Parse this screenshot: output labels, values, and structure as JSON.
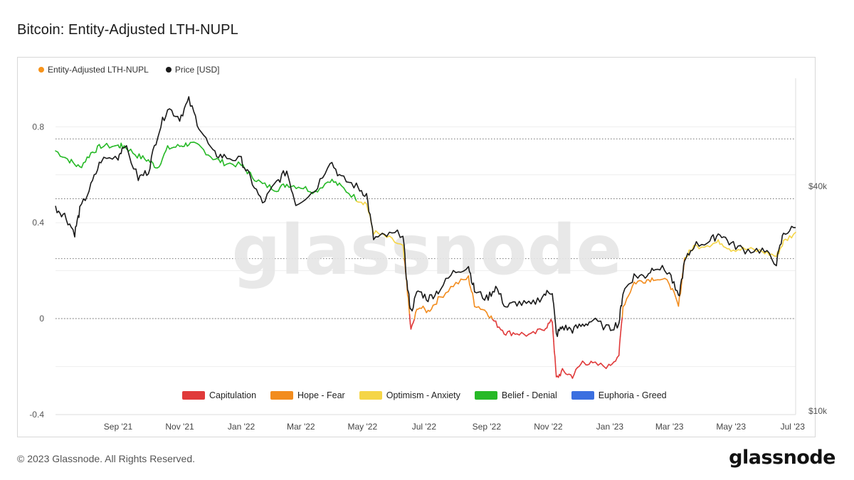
{
  "title": "Bitcoin: Entity-Adjusted LTH-NUPL",
  "footer": {
    "copyright": "© 2023 Glassnode. All Rights Reserved.",
    "logo": "glassnode"
  },
  "watermark": "glassnode",
  "chart_data": {
    "type": "line",
    "title": "Bitcoin: Entity-Adjusted LTH-NUPL",
    "legend_placement": "top-left",
    "grid": true,
    "series": [
      {
        "name": "Entity-Adjusted LTH-NUPL",
        "color": "#f7931a",
        "axis": "left"
      },
      {
        "name": "Price [USD]",
        "color": "#1a1a1a",
        "axis": "right"
      }
    ],
    "x_axis": {
      "range": [
        "2021-07-01",
        "2023-07-04"
      ],
      "ticks": [
        "Sep '21",
        "Nov '21",
        "Jan '22",
        "Mar '22",
        "May '22",
        "Jul '22",
        "Sep '22",
        "Nov '22",
        "Jan '23",
        "Mar '23",
        "May '23",
        "Jul '23"
      ]
    },
    "y_left": {
      "range": [
        -0.4,
        1.0
      ],
      "ticks": [
        "-0.4",
        "0",
        "0.4",
        "0.8"
      ],
      "values": [
        -0.4,
        0,
        0.4,
        0.8
      ]
    },
    "y_right": {
      "scale": "log",
      "ticks": [
        "$10k",
        "$40k"
      ],
      "values": [
        10000,
        40000
      ]
    },
    "zones": [
      {
        "name": "Capitulation",
        "color": "#e03a3a",
        "range": "< 0"
      },
      {
        "name": "Hope - Fear",
        "color": "#f28c1e",
        "range": "0 - 0.25"
      },
      {
        "name": "Optimism - Anxiety",
        "color": "#f5d547",
        "range": "0.25 - 0.5"
      },
      {
        "name": "Belief - Denial",
        "color": "#27b927",
        "range": "0.5 - 0.75"
      },
      {
        "name": "Euphoria - Greed",
        "color": "#3b6fe0",
        "range": "> 0.75"
      }
    ],
    "nupl_points": [
      [
        "2021-07-01",
        0.7
      ],
      [
        "2021-07-15",
        0.66
      ],
      [
        "2021-07-25",
        0.63
      ],
      [
        "2021-08-05",
        0.69
      ],
      [
        "2021-08-15",
        0.72
      ],
      [
        "2021-09-01",
        0.72
      ],
      [
        "2021-09-07",
        0.72
      ],
      [
        "2021-09-20",
        0.68
      ],
      [
        "2021-10-01",
        0.66
      ],
      [
        "2021-10-10",
        0.63
      ],
      [
        "2021-10-20",
        0.71
      ],
      [
        "2021-11-01",
        0.72
      ],
      [
        "2021-11-10",
        0.73
      ],
      [
        "2021-11-20",
        0.72
      ],
      [
        "2021-12-04",
        0.67
      ],
      [
        "2021-12-15",
        0.65
      ],
      [
        "2022-01-01",
        0.64
      ],
      [
        "2022-01-10",
        0.6
      ],
      [
        "2022-01-22",
        0.56
      ],
      [
        "2022-02-05",
        0.54
      ],
      [
        "2022-02-15",
        0.56
      ],
      [
        "2022-03-01",
        0.55
      ],
      [
        "2022-03-15",
        0.53
      ],
      [
        "2022-03-30",
        0.58
      ],
      [
        "2022-04-10",
        0.55
      ],
      [
        "2022-04-25",
        0.5
      ],
      [
        "2022-05-05",
        0.48
      ],
      [
        "2022-05-12",
        0.36
      ],
      [
        "2022-05-25",
        0.34
      ],
      [
        "2022-06-10",
        0.3
      ],
      [
        "2022-06-14",
        0.14
      ],
      [
        "2022-06-18",
        -0.05
      ],
      [
        "2022-06-25",
        0.05
      ],
      [
        "2022-07-05",
        0.03
      ],
      [
        "2022-07-15",
        0.08
      ],
      [
        "2022-07-30",
        0.14
      ],
      [
        "2022-08-14",
        0.17
      ],
      [
        "2022-08-20",
        0.06
      ],
      [
        "2022-09-01",
        0.03
      ],
      [
        "2022-09-10",
        -0.02
      ],
      [
        "2022-09-20",
        -0.06
      ],
      [
        "2022-10-01",
        -0.06
      ],
      [
        "2022-10-15",
        -0.07
      ],
      [
        "2022-10-28",
        -0.04
      ],
      [
        "2022-11-05",
        -0.01
      ],
      [
        "2022-11-09",
        -0.25
      ],
      [
        "2022-11-15",
        -0.22
      ],
      [
        "2022-11-25",
        -0.24
      ],
      [
        "2022-12-05",
        -0.18
      ],
      [
        "2022-12-15",
        -0.19
      ],
      [
        "2022-12-31",
        -0.2
      ],
      [
        "2023-01-10",
        -0.15
      ],
      [
        "2023-01-14",
        0.05
      ],
      [
        "2023-01-25",
        0.15
      ],
      [
        "2023-02-05",
        0.16
      ],
      [
        "2023-02-15",
        0.17
      ],
      [
        "2023-03-01",
        0.15
      ],
      [
        "2023-03-10",
        0.05
      ],
      [
        "2023-03-16",
        0.25
      ],
      [
        "2023-03-25",
        0.3
      ],
      [
        "2023-04-10",
        0.31
      ],
      [
        "2023-04-20",
        0.32
      ],
      [
        "2023-05-01",
        0.29
      ],
      [
        "2023-05-15",
        0.29
      ],
      [
        "2023-06-01",
        0.28
      ],
      [
        "2023-06-15",
        0.26
      ],
      [
        "2023-06-22",
        0.32
      ],
      [
        "2023-07-04",
        0.36
      ]
    ],
    "price_points": [
      [
        "2021-07-01",
        35000
      ],
      [
        "2021-07-10",
        33500
      ],
      [
        "2021-07-20",
        30000
      ],
      [
        "2021-07-25",
        34500
      ],
      [
        "2021-08-05",
        40000
      ],
      [
        "2021-08-15",
        47000
      ],
      [
        "2021-09-01",
        48000
      ],
      [
        "2021-09-07",
        52000
      ],
      [
        "2021-09-21",
        42000
      ],
      [
        "2021-10-01",
        44000
      ],
      [
        "2021-10-10",
        55000
      ],
      [
        "2021-10-20",
        65000
      ],
      [
        "2021-11-01",
        61000
      ],
      [
        "2021-11-10",
        68000
      ],
      [
        "2021-11-20",
        58000
      ],
      [
        "2021-12-04",
        49000
      ],
      [
        "2021-12-15",
        48000
      ],
      [
        "2022-01-01",
        47000
      ],
      [
        "2022-01-10",
        42000
      ],
      [
        "2022-01-22",
        36000
      ],
      [
        "2022-02-05",
        41000
      ],
      [
        "2022-02-15",
        44000
      ],
      [
        "2022-02-24",
        36000
      ],
      [
        "2022-03-15",
        39000
      ],
      [
        "2022-03-30",
        47000
      ],
      [
        "2022-04-10",
        42000
      ],
      [
        "2022-04-25",
        40000
      ],
      [
        "2022-05-05",
        38000
      ],
      [
        "2022-05-12",
        29000
      ],
      [
        "2022-05-25",
        29500
      ],
      [
        "2022-06-10",
        30000
      ],
      [
        "2022-06-14",
        22000
      ],
      [
        "2022-06-18",
        18500
      ],
      [
        "2022-06-25",
        21000
      ],
      [
        "2022-07-05",
        20000
      ],
      [
        "2022-07-15",
        21000
      ],
      [
        "2022-07-30",
        23500
      ],
      [
        "2022-08-14",
        24500
      ],
      [
        "2022-08-20",
        21000
      ],
      [
        "2022-09-01",
        20000
      ],
      [
        "2022-09-10",
        21500
      ],
      [
        "2022-09-20",
        19000
      ],
      [
        "2022-10-01",
        19500
      ],
      [
        "2022-10-15",
        19200
      ],
      [
        "2022-10-28",
        20500
      ],
      [
        "2022-11-05",
        21000
      ],
      [
        "2022-11-09",
        16000
      ],
      [
        "2022-11-15",
        16800
      ],
      [
        "2022-11-25",
        16500
      ],
      [
        "2022-12-05",
        17000
      ],
      [
        "2022-12-15",
        17500
      ],
      [
        "2022-12-31",
        16600
      ],
      [
        "2023-01-10",
        17200
      ],
      [
        "2023-01-14",
        20800
      ],
      [
        "2023-01-25",
        23000
      ],
      [
        "2023-02-05",
        23000
      ],
      [
        "2023-02-15",
        24500
      ],
      [
        "2023-03-01",
        23500
      ],
      [
        "2023-03-10",
        20000
      ],
      [
        "2023-03-16",
        25000
      ],
      [
        "2023-03-25",
        27800
      ],
      [
        "2023-04-10",
        28500
      ],
      [
        "2023-04-20",
        30000
      ],
      [
        "2023-05-01",
        28000
      ],
      [
        "2023-05-15",
        27000
      ],
      [
        "2023-06-01",
        27000
      ],
      [
        "2023-06-15",
        25000
      ],
      [
        "2023-06-22",
        30000
      ],
      [
        "2023-07-04",
        31000
      ]
    ]
  },
  "legend_top": [
    {
      "label": "Entity-Adjusted LTH-NUPL",
      "color": "#f7931a"
    },
    {
      "label": "Price [USD]",
      "color": "#1a1a1a"
    }
  ]
}
